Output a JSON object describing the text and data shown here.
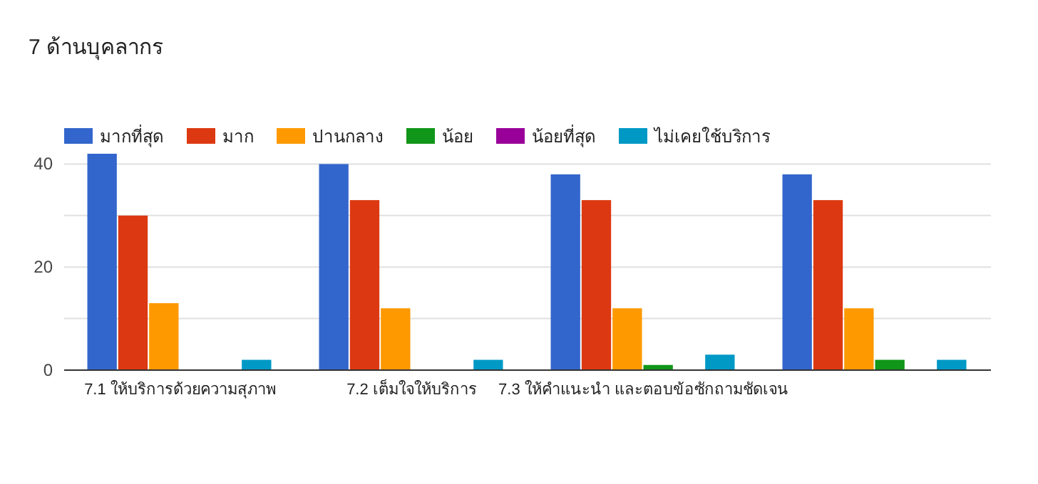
{
  "chart_data": {
    "type": "bar",
    "title": "7 ด้านบุคลากร",
    "categories": [
      "7.1 ให้บริการด้วยความสุภาพ",
      "7.2 เต็มใจให้บริการ",
      "7.3 ให้คำแนะนำ และตอบข้อซักถามชัดเจน",
      null
    ],
    "series": [
      {
        "name": "มากที่สุด",
        "color": "#3366cc",
        "values": [
          42,
          40,
          38,
          38
        ]
      },
      {
        "name": "มาก",
        "color": "#dc3912",
        "values": [
          30,
          33,
          33,
          33
        ]
      },
      {
        "name": "ปานกลาง",
        "color": "#ff9900",
        "values": [
          13,
          12,
          12,
          12
        ]
      },
      {
        "name": "น้อย",
        "color": "#109618",
        "values": [
          0,
          0,
          1,
          2
        ]
      },
      {
        "name": "น้อยที่สุด",
        "color": "#990099",
        "values": [
          0,
          0,
          0,
          0
        ]
      },
      {
        "name": "ไม่เคยใช้บริการ",
        "color": "#0099c6",
        "values": [
          2,
          2,
          3,
          2
        ]
      }
    ],
    "ylim": [
      0,
      42
    ],
    "yticks": [
      0,
      {
        "value": 10,
        "label": null
      },
      20,
      {
        "value": 30,
        "label": null
      },
      40
    ],
    "grid": "y",
    "legend": "top"
  }
}
